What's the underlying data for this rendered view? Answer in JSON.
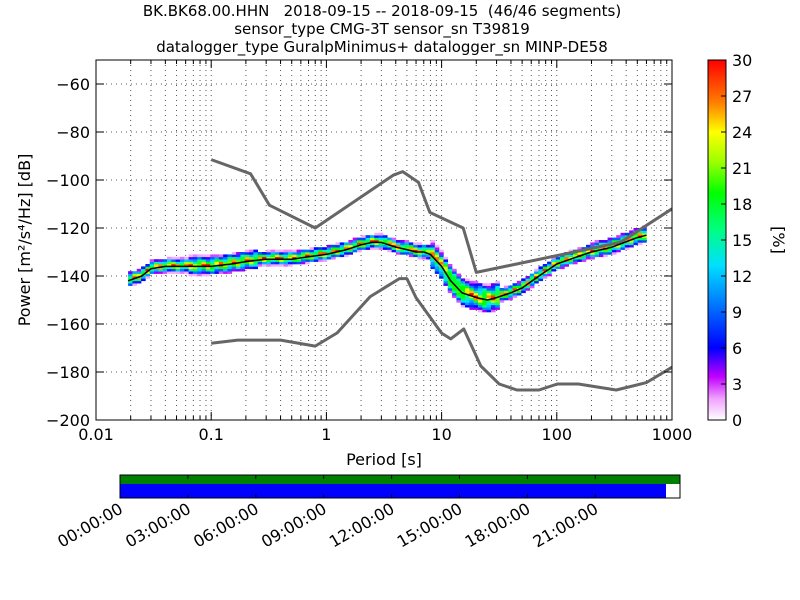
{
  "header": {
    "line1": "BK.BK68.00.HHN   2018-09-15 -- 2018-09-15  (46/46 segments)",
    "line2": "sensor_type CMG-3T sensor_sn T39819",
    "line3": "datalogger_type GuralpMinimus+ datalogger_sn MINP-DE58"
  },
  "chart_data": [
    {
      "type": "heatmap",
      "title": "BK.BK68.00.HHN   2018-09-15 -- 2018-09-15  (46/46 segments)",
      "xlabel": "Period [s]",
      "ylabel": "Power [m²/s⁴/Hz] [dB]",
      "xscale": "log",
      "xlim": [
        0.01,
        1000
      ],
      "ylim": [
        -200,
        -50
      ],
      "x_ticks": [
        {
          "value": 0.01,
          "label": "0.01"
        },
        {
          "value": 0.1,
          "label": "0.1"
        },
        {
          "value": 1,
          "label": "1"
        },
        {
          "value": 10,
          "label": "10"
        },
        {
          "value": 100,
          "label": "100"
        },
        {
          "value": 1000,
          "label": "1000"
        }
      ],
      "y_ticks": [
        {
          "value": -60,
          "label": "−60"
        },
        {
          "value": -80,
          "label": "−80"
        },
        {
          "value": -100,
          "label": "−100"
        },
        {
          "value": -120,
          "label": "−120"
        },
        {
          "value": -140,
          "label": "−140"
        },
        {
          "value": -160,
          "label": "−160"
        },
        {
          "value": -180,
          "label": "−180"
        },
        {
          "value": -200,
          "label": "−200"
        }
      ],
      "grid": true,
      "colorbar": {
        "label": "[%]",
        "min": 0,
        "max": 30,
        "ticks": [
          "0",
          "3",
          "6",
          "9",
          "12",
          "15",
          "18",
          "21",
          "24",
          "27",
          "30"
        ]
      },
      "psd_median": {
        "x": [
          0.019,
          0.025,
          0.03,
          0.04,
          0.05,
          0.07,
          0.1,
          0.15,
          0.2,
          0.3,
          0.4,
          0.5,
          0.7,
          1,
          1.5,
          2,
          2.5,
          3,
          4,
          5,
          6,
          7,
          8,
          10,
          12,
          15,
          20,
          25,
          30,
          40,
          50,
          70,
          100,
          150,
          200,
          300,
          500,
          600
        ],
        "y": [
          -142,
          -140,
          -137,
          -136,
          -136,
          -136,
          -136,
          -135,
          -134,
          -133,
          -133,
          -133,
          -132,
          -131,
          -129,
          -127,
          -126,
          -126,
          -128,
          -129,
          -130,
          -130,
          -131,
          -136,
          -142,
          -147,
          -149,
          -150,
          -149,
          -147,
          -145,
          -140,
          -135,
          -132,
          -130,
          -128,
          -124,
          -123
        ]
      },
      "noise_model_high": {
        "x": [
          0.1,
          0.22,
          0.32,
          0.8,
          3.8,
          4.6,
          6.3,
          7.9,
          15.4,
          20,
          354.8,
          1000
        ],
        "y": [
          -91.5,
          -97.4,
          -110.5,
          -120,
          -98,
          -96.5,
          -101,
          -113.5,
          -120,
          -138.5,
          -126,
          -112
        ]
      },
      "noise_model_low": {
        "x": [
          0.1,
          0.17,
          0.4,
          0.8,
          1.24,
          2.4,
          4.3,
          5,
          6,
          10,
          12,
          15.6,
          21.9,
          31.6,
          45,
          70,
          101,
          154,
          328,
          600,
          1000
        ],
        "y": [
          -168,
          -166.7,
          -166.7,
          -169.2,
          -163.7,
          -148.6,
          -141.1,
          -141.1,
          -149,
          -163.8,
          -166.2,
          -162.1,
          -177.5,
          -185,
          -187.5,
          -187.5,
          -185,
          -185,
          -187.5,
          -184.4,
          -178
        ]
      }
    },
    {
      "type": "bar",
      "title": "",
      "xlabel": "",
      "ylabel": "",
      "time_ticks": [
        "00:00:00",
        "03:00:00",
        "06:00:00",
        "09:00:00",
        "12:00:00",
        "15:00:00",
        "18:00:00",
        "21:00:00"
      ],
      "series": [
        {
          "name": "",
          "coverage_fraction": 1.0,
          "color": "#008000"
        },
        {
          "name": "",
          "coverage_fraction": 0.975,
          "color": "#0000ff"
        }
      ]
    }
  ],
  "colors": {
    "median": "#000000",
    "noise_model": "#666666",
    "grid": "#555555"
  }
}
